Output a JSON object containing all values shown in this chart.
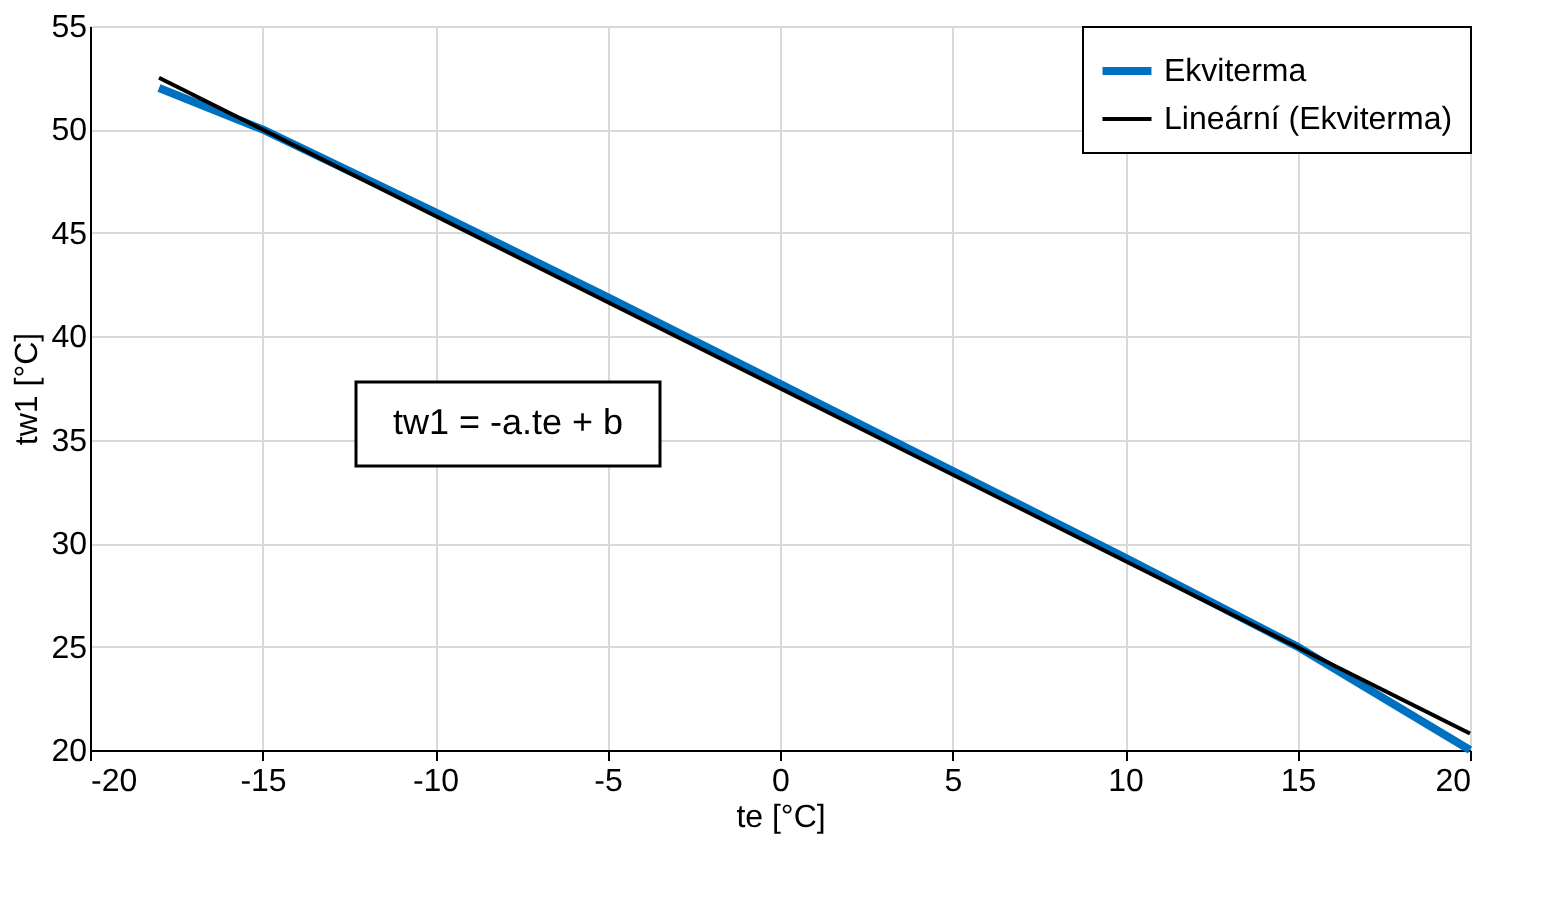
{
  "chart_data": {
    "type": "line",
    "xlabel": "te [°C]",
    "ylabel": "tw1 [°C]",
    "xlim": [
      -20,
      20
    ],
    "xticks": [
      -20,
      -15,
      -10,
      -5,
      0,
      5,
      10,
      15,
      20
    ],
    "ylim": [
      20,
      55
    ],
    "yticks": [
      20,
      25,
      30,
      35,
      40,
      45,
      50,
      55
    ],
    "grid": true,
    "legend": "top right",
    "line_style": "solid",
    "marker": "none",
    "annotations": [
      "tw1 = -a.te + b"
    ],
    "series": [
      {
        "name": "Ekviterma",
        "color": "#0070c0",
        "x": [
          -18,
          -15,
          -10,
          -5,
          0,
          5,
          10,
          15,
          20
        ],
        "values": [
          52,
          50,
          46,
          41.9,
          37.7,
          33.5,
          29.3,
          25,
          20
        ]
      },
      {
        "name": "Lineární (Ekviterma)",
        "color": "#000000",
        "x": [
          -18,
          20
        ],
        "values": [
          52.5,
          20.8
        ]
      }
    ]
  }
}
